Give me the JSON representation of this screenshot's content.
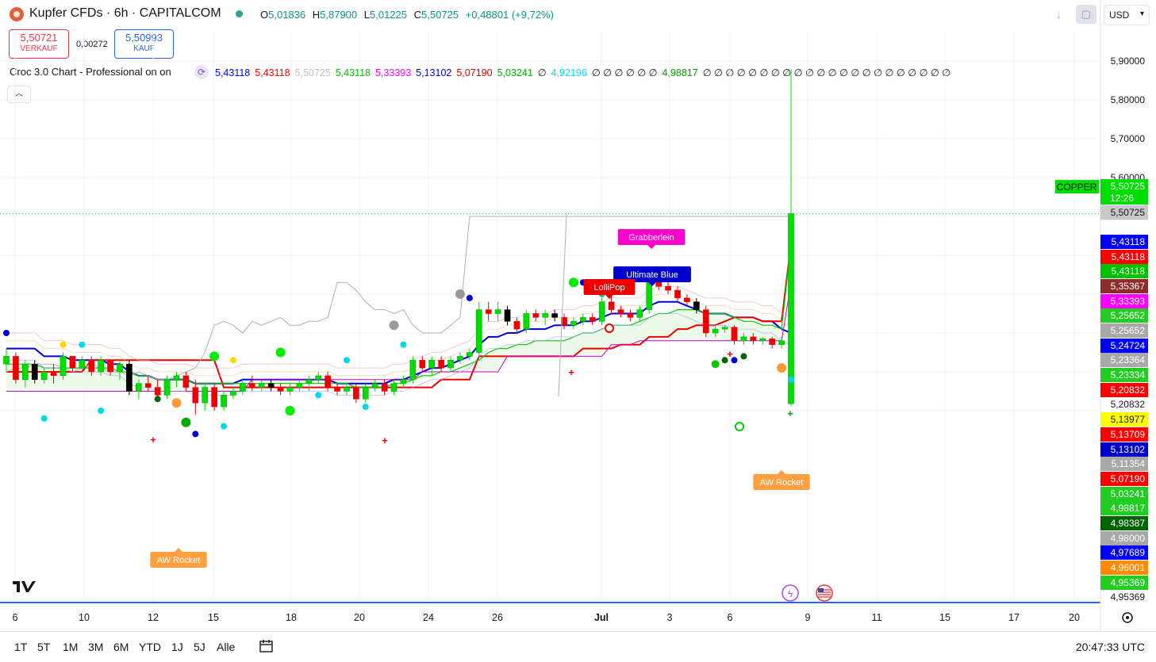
{
  "header": {
    "title": "Kupfer CFDs · 6h · CAPITALCOM",
    "ohlc": {
      "o_label": "O",
      "o": "5,01836",
      "h_label": "H",
      "h": "5,87900",
      "l_label": "L",
      "l": "5,01225",
      "c_label": "C",
      "c": "5,50725",
      "change": "+0,48801 (+9,72%)"
    },
    "currency": "USD"
  },
  "trade": {
    "sell_price": "5,50721",
    "sell_label": "VERKAUF",
    "spread": "0,00272",
    "buy_price": "5,50993",
    "buy_label": "KAUF"
  },
  "indicator": {
    "name": "Croc 3.0 Chart - Professional on on",
    "values": [
      {
        "text": "5,43118",
        "color": "#0000ff"
      },
      {
        "text": "5,43118",
        "color": "#ff0000"
      },
      {
        "text": "5,50725",
        "color": "#c0c0c0"
      },
      {
        "text": "5,43118",
        "color": "#00c000"
      },
      {
        "text": "5,33393",
        "color": "#ff00ff"
      },
      {
        "text": "5,13102",
        "color": "#0000cc"
      },
      {
        "text": "5,07190",
        "color": "#e00000"
      },
      {
        "text": "5,03241",
        "color": "#00b000"
      },
      {
        "text": "∅",
        "color": "#131722"
      },
      {
        "text": "4,92196",
        "color": "#00e0f0"
      },
      {
        "text": "∅ ∅ ∅ ∅ ∅ ∅",
        "color": "#131722"
      },
      {
        "text": "4,98817",
        "color": "#00a000"
      },
      {
        "text": "∅ ∅ ∅ ∅ ∅ ∅ ∅ ∅ ∅ ∅ ∅ ∅ ∅ ∅ ∅ ∅ ∅ ∅ ∅ ∅ ∅ ∅",
        "color": "#131722"
      }
    ]
  },
  "chart_data": {
    "type": "candlestick",
    "y_axis": {
      "min": 4.95369,
      "max": 5.9,
      "ticks": [
        "5,90000",
        "5,80000",
        "5,70000",
        "5,60000",
        "5,20832",
        "4,95369"
      ]
    },
    "x_ticks": [
      "6",
      "10",
      "12",
      "15",
      "18",
      "20",
      "24",
      "26",
      "Jul",
      "3",
      "6",
      "9",
      "11",
      "15",
      "17",
      "20"
    ],
    "price_label": {
      "symbol": "COPPER",
      "price": "5,50725",
      "countdown": "12:26"
    },
    "right_labels": [
      {
        "text": "5,50725",
        "bg": "#c8c8c8",
        "fg": "#131722"
      },
      {
        "text": "5,43118",
        "bg": "#0000ff",
        "fg": "#ffffff"
      },
      {
        "text": "5,43118",
        "bg": "#ff0000",
        "fg": "#ffffff"
      },
      {
        "text": "5,43118",
        "bg": "#00c000",
        "fg": "#ffffff"
      },
      {
        "text": "5,35367",
        "bg": "#8b2d2d",
        "fg": "#ffffff"
      },
      {
        "text": "5,33393",
        "bg": "#ff00ff",
        "fg": "#ffffff"
      },
      {
        "text": "5,25652",
        "bg": "#22cc22",
        "fg": "#ffffff"
      },
      {
        "text": "5,25652",
        "bg": "#a8a8a8",
        "fg": "#ffffff"
      },
      {
        "text": "5,24724",
        "bg": "#0000ff",
        "fg": "#ffffff"
      },
      {
        "text": "5,23364",
        "bg": "#a8a8a8",
        "fg": "#ffffff"
      },
      {
        "text": "5,23334",
        "bg": "#22cc22",
        "fg": "#ffffff"
      },
      {
        "text": "5,20832",
        "bg": "#ff0000",
        "fg": "#ffffff"
      },
      {
        "text": "5,13977",
        "bg": "#ffff00",
        "fg": "#131722"
      },
      {
        "text": "5,13709",
        "bg": "#ff0000",
        "fg": "#ffffff"
      },
      {
        "text": "5,13102",
        "bg": "#0000cc",
        "fg": "#ffffff"
      },
      {
        "text": "5,11354",
        "bg": "#a8a8a8",
        "fg": "#ffffff"
      },
      {
        "text": "5,07190",
        "bg": "#ff0000",
        "fg": "#ffffff"
      },
      {
        "text": "5,03241",
        "bg": "#22cc22",
        "fg": "#ffffff"
      },
      {
        "text": "4,98817",
        "bg": "#22cc22",
        "fg": "#ffffff"
      },
      {
        "text": "4,98387",
        "bg": "#006400",
        "fg": "#ffffff"
      },
      {
        "text": "4,98000",
        "bg": "#a8a8a8",
        "fg": "#ffffff"
      },
      {
        "text": "4,97689",
        "bg": "#0000ff",
        "fg": "#ffffff"
      },
      {
        "text": "4,96001",
        "bg": "#ff8c00",
        "fg": "#ffffff"
      },
      {
        "text": "4,95369",
        "bg": "#22cc22",
        "fg": "#ffffff"
      }
    ],
    "annotations": [
      {
        "text": "Grabberlein",
        "bg": "#ff00cc"
      },
      {
        "text": "Ultimate Blue",
        "bg": "#0000cc"
      },
      {
        "text": "LolliPop",
        "bg": "#ee0000"
      },
      {
        "text": "AW Rocket",
        "bg": "#ffa040"
      },
      {
        "text": "AW Rocket",
        "bg": "#ffa040"
      }
    ],
    "candles": [
      [
        5.12,
        5.16,
        5.1,
        5.14
      ],
      [
        5.14,
        5.15,
        5.07,
        5.08
      ],
      [
        5.08,
        5.13,
        5.06,
        5.12
      ],
      [
        5.12,
        5.13,
        5.07,
        5.08
      ],
      [
        5.08,
        5.11,
        5.07,
        5.1
      ],
      [
        5.1,
        5.12,
        5.07,
        5.09
      ],
      [
        5.09,
        5.15,
        5.08,
        5.14
      ],
      [
        5.14,
        5.14,
        5.1,
        5.11
      ],
      [
        5.11,
        5.14,
        5.1,
        5.13
      ],
      [
        5.13,
        5.14,
        5.09,
        5.1
      ],
      [
        5.1,
        5.14,
        5.09,
        5.13
      ],
      [
        5.13,
        5.13,
        5.09,
        5.1
      ],
      [
        5.1,
        5.13,
        5.08,
        5.12
      ],
      [
        5.12,
        5.13,
        5.04,
        5.05
      ],
      [
        5.05,
        5.08,
        5.03,
        5.07
      ],
      [
        5.07,
        5.09,
        5.05,
        5.06
      ],
      [
        5.06,
        5.08,
        5.03,
        5.04
      ],
      [
        5.04,
        5.09,
        5.03,
        5.08
      ],
      [
        5.08,
        5.1,
        5.06,
        5.09
      ],
      [
        5.09,
        5.1,
        5.05,
        5.06
      ],
      [
        5.06,
        5.08,
        4.99,
        5.02
      ],
      [
        5.02,
        5.07,
        5.0,
        5.06
      ],
      [
        5.06,
        5.07,
        5.0,
        5.01
      ],
      [
        5.01,
        5.05,
        5.0,
        5.04
      ],
      [
        5.04,
        5.06,
        5.03,
        5.05
      ],
      [
        5.05,
        5.08,
        5.04,
        5.07
      ],
      [
        5.07,
        5.09,
        5.05,
        5.06
      ],
      [
        5.06,
        5.08,
        5.05,
        5.07
      ],
      [
        5.07,
        5.08,
        5.05,
        5.06
      ],
      [
        5.06,
        5.07,
        5.04,
        5.05
      ],
      [
        5.05,
        5.07,
        5.04,
        5.06
      ],
      [
        5.06,
        5.08,
        5.05,
        5.07
      ],
      [
        5.07,
        5.09,
        5.05,
        5.08
      ],
      [
        5.08,
        5.1,
        5.07,
        5.09
      ],
      [
        5.09,
        5.1,
        5.05,
        5.06
      ],
      [
        5.06,
        5.07,
        5.04,
        5.05
      ],
      [
        5.05,
        5.07,
        5.04,
        5.06
      ],
      [
        5.06,
        5.07,
        5.02,
        5.03
      ],
      [
        5.03,
        5.07,
        5.02,
        5.06
      ],
      [
        5.06,
        5.08,
        5.05,
        5.07
      ],
      [
        5.07,
        5.08,
        5.04,
        5.05
      ],
      [
        5.05,
        5.08,
        5.04,
        5.07
      ],
      [
        5.07,
        5.09,
        5.06,
        5.08
      ],
      [
        5.08,
        5.14,
        5.07,
        5.13
      ],
      [
        5.13,
        5.14,
        5.1,
        5.11
      ],
      [
        5.11,
        5.14,
        5.09,
        5.13
      ],
      [
        5.13,
        5.14,
        5.1,
        5.11
      ],
      [
        5.11,
        5.14,
        5.1,
        5.13
      ],
      [
        5.13,
        5.15,
        5.12,
        5.14
      ],
      [
        5.14,
        5.16,
        5.13,
        5.15
      ],
      [
        5.15,
        5.28,
        5.14,
        5.26
      ],
      [
        5.26,
        5.28,
        5.23,
        5.25
      ],
      [
        5.25,
        5.28,
        5.23,
        5.26
      ],
      [
        5.26,
        5.27,
        5.22,
        5.23
      ],
      [
        5.23,
        5.24,
        5.2,
        5.21
      ],
      [
        5.21,
        5.26,
        5.2,
        5.25
      ],
      [
        5.25,
        5.26,
        5.23,
        5.24
      ],
      [
        5.24,
        5.26,
        5.22,
        5.25
      ],
      [
        5.25,
        5.26,
        5.23,
        5.24
      ],
      [
        5.24,
        5.25,
        5.21,
        5.22
      ],
      [
        5.22,
        5.24,
        5.21,
        5.23
      ],
      [
        5.23,
        5.25,
        5.22,
        5.24
      ],
      [
        5.24,
        5.25,
        5.22,
        5.23
      ],
      [
        5.23,
        5.29,
        5.22,
        5.28
      ],
      [
        5.28,
        5.3,
        5.25,
        5.26
      ],
      [
        5.26,
        5.27,
        5.24,
        5.25
      ],
      [
        5.25,
        5.26,
        5.23,
        5.24
      ],
      [
        5.24,
        5.27,
        5.23,
        5.26
      ],
      [
        5.26,
        5.34,
        5.25,
        5.33
      ],
      [
        5.33,
        5.34,
        5.31,
        5.32
      ],
      [
        5.32,
        5.34,
        5.3,
        5.31
      ],
      [
        5.31,
        5.32,
        5.28,
        5.29
      ],
      [
        5.29,
        5.3,
        5.27,
        5.28
      ],
      [
        5.28,
        5.29,
        5.25,
        5.26
      ],
      [
        5.26,
        5.27,
        5.19,
        5.2
      ],
      [
        5.2,
        5.22,
        5.19,
        5.21
      ],
      [
        5.21,
        5.22,
        5.2,
        5.215
      ],
      [
        5.215,
        5.22,
        5.17,
        5.18
      ],
      [
        5.18,
        5.2,
        5.17,
        5.19
      ],
      [
        5.19,
        5.2,
        5.17,
        5.18
      ],
      [
        5.18,
        5.19,
        5.17,
        5.185
      ],
      [
        5.185,
        5.19,
        5.16,
        5.17
      ],
      [
        5.17,
        5.19,
        5.16,
        5.18
      ],
      [
        5.018,
        5.879,
        5.012,
        5.507
      ]
    ],
    "lines": [
      {
        "name": "",
        "color": "#0000dd",
        "values": [
          5.16,
          5.16,
          5.16,
          5.16,
          5.14,
          5.14,
          5.14,
          5.13,
          5.13,
          5.13,
          5.13,
          5.12,
          5.12,
          5.1,
          5.09,
          5.09,
          5.08,
          5.08,
          5.08,
          5.08,
          5.07,
          5.07,
          5.07,
          5.07,
          5.07,
          5.08,
          5.08,
          5.08,
          5.08,
          5.08,
          5.08,
          5.08,
          5.08,
          5.08,
          5.08,
          5.07,
          5.07,
          5.07,
          5.07,
          5.07,
          5.07,
          5.08,
          5.08,
          5.09,
          5.1,
          5.11,
          5.11,
          5.12,
          5.13,
          5.14,
          5.17,
          5.19,
          5.19,
          5.2,
          5.2,
          5.21,
          5.21,
          5.21,
          5.22,
          5.22,
          5.22,
          5.23,
          5.23,
          5.24,
          5.25,
          5.25,
          5.25,
          5.25,
          5.27,
          5.28,
          5.28,
          5.28,
          5.27,
          5.26,
          5.25,
          5.25,
          5.25,
          5.24,
          5.24,
          5.24,
          5.23,
          5.23,
          5.21,
          5.2
        ]
      },
      {
        "name": "",
        "color": "#ee0000",
        "values": [
          5.1,
          5.1,
          5.1,
          5.1,
          5.1,
          5.1,
          5.1,
          5.1,
          5.1,
          5.13,
          5.13,
          5.13,
          5.13,
          5.13,
          5.13,
          5.13,
          5.13,
          5.13,
          5.13,
          5.13,
          5.13,
          5.13,
          5.13,
          5.06,
          5.06,
          5.06,
          5.06,
          5.06,
          5.06,
          5.06,
          5.06,
          5.06,
          5.06,
          5.06,
          5.06,
          5.06,
          5.06,
          5.06,
          5.06,
          5.06,
          5.06,
          5.06,
          5.06,
          5.06,
          5.06,
          5.06,
          5.08,
          5.08,
          5.08,
          5.08,
          5.14,
          5.14,
          5.14,
          5.14,
          5.14,
          5.14,
          5.14,
          5.14,
          5.14,
          5.14,
          5.14,
          5.16,
          5.16,
          5.16,
          5.16,
          5.17,
          5.17,
          5.17,
          5.19,
          5.19,
          5.19,
          5.21,
          5.21,
          5.22,
          5.22,
          5.22,
          5.23,
          5.24,
          5.24,
          5.24,
          5.23,
          5.23,
          5.23,
          5.43
        ]
      },
      {
        "name": "",
        "color": "#00cc00",
        "values": [
          5.12,
          5.12,
          5.12,
          5.12,
          5.11,
          5.11,
          5.11,
          5.11,
          5.11,
          5.11,
          5.11,
          5.11,
          5.1,
          5.1,
          5.09,
          5.09,
          5.08,
          5.08,
          5.08,
          5.08,
          5.07,
          5.07,
          5.07,
          5.07,
          5.07,
          5.07,
          5.07,
          5.07,
          5.07,
          5.07,
          5.07,
          5.07,
          5.07,
          5.07,
          5.07,
          5.07,
          5.07,
          5.06,
          5.06,
          5.06,
          5.06,
          5.07,
          5.07,
          5.08,
          5.09,
          5.09,
          5.1,
          5.1,
          5.11,
          5.12,
          5.13,
          5.15,
          5.16,
          5.16,
          5.17,
          5.17,
          5.18,
          5.18,
          5.18,
          5.18,
          5.19,
          5.2,
          5.2,
          5.21,
          5.22,
          5.22,
          5.22,
          5.23,
          5.24,
          5.25,
          5.25,
          5.26,
          5.26,
          5.26,
          5.25,
          5.25,
          5.25,
          5.24,
          5.23,
          5.23,
          5.22,
          5.22,
          5.21,
          5.43
        ]
      },
      {
        "name": "",
        "color": "#cc00cc",
        "values": [
          5.05,
          5.05,
          5.05,
          5.05,
          5.05,
          5.05,
          5.05,
          5.05,
          5.05,
          5.05,
          5.05,
          5.05,
          5.05,
          5.05,
          5.05,
          5.05,
          5.05,
          5.05,
          5.05,
          5.05,
          5.05,
          5.05,
          5.05,
          5.05,
          5.05,
          5.05,
          5.08,
          5.08,
          5.08,
          5.08,
          5.08,
          5.08,
          5.08,
          5.08,
          5.08,
          5.08,
          5.08,
          5.08,
          5.08,
          5.08,
          5.08,
          5.08,
          5.08,
          5.08,
          5.1,
          5.1,
          5.1,
          5.1,
          5.1,
          5.1,
          5.1,
          5.1,
          5.1,
          5.14,
          5.14,
          5.14,
          5.14,
          5.14,
          5.14,
          5.14,
          5.14,
          5.14,
          5.14,
          5.14,
          5.17,
          5.17,
          5.17,
          5.18,
          5.18,
          5.18,
          5.18,
          5.18,
          5.18,
          5.18,
          5.18,
          5.18,
          5.18,
          5.18,
          5.18,
          5.18,
          5.18,
          5.18,
          5.18,
          5.33
        ]
      },
      {
        "name": "",
        "color": "#b0b0b0",
        "values": [
          5.1,
          5.11,
          5.11,
          5.12,
          5.12,
          5.12,
          5.11,
          5.1,
          5.11,
          5.12,
          5.11,
          5.1,
          5.1,
          5.09,
          5.1,
          5.09,
          5.08,
          5.08,
          5.09,
          5.1,
          5.11,
          5.15,
          5.22,
          5.23,
          5.22,
          5.2,
          5.23,
          5.22,
          5.23,
          5.24,
          5.22,
          5.22,
          5.23,
          5.23,
          5.24,
          5.33,
          5.33,
          5.31,
          5.28,
          5.26,
          5.26,
          5.25,
          5.26,
          5.22,
          5.2,
          5.2,
          5.2,
          5.22,
          5.24,
          5.5,
          5.5,
          5.5,
          5.5,
          5.5,
          5.5,
          5.5,
          5.5,
          5.5,
          5.5,
          5.5,
          5.5,
          5.5,
          5.5,
          5.5,
          5.5,
          5.5,
          5.5,
          5.5,
          5.5,
          5.5,
          5.5,
          5.5,
          5.5,
          5.5,
          5.5,
          5.5,
          5.5,
          5.5,
          5.5,
          5.5,
          5.5,
          5.5,
          5.5,
          5.5
        ]
      }
    ]
  },
  "bottom": {
    "ranges": [
      "1T",
      "5T",
      "1M",
      "3M",
      "6M",
      "YTD",
      "1J",
      "5J",
      "Alle"
    ],
    "time": "20:47:33 UTC"
  }
}
